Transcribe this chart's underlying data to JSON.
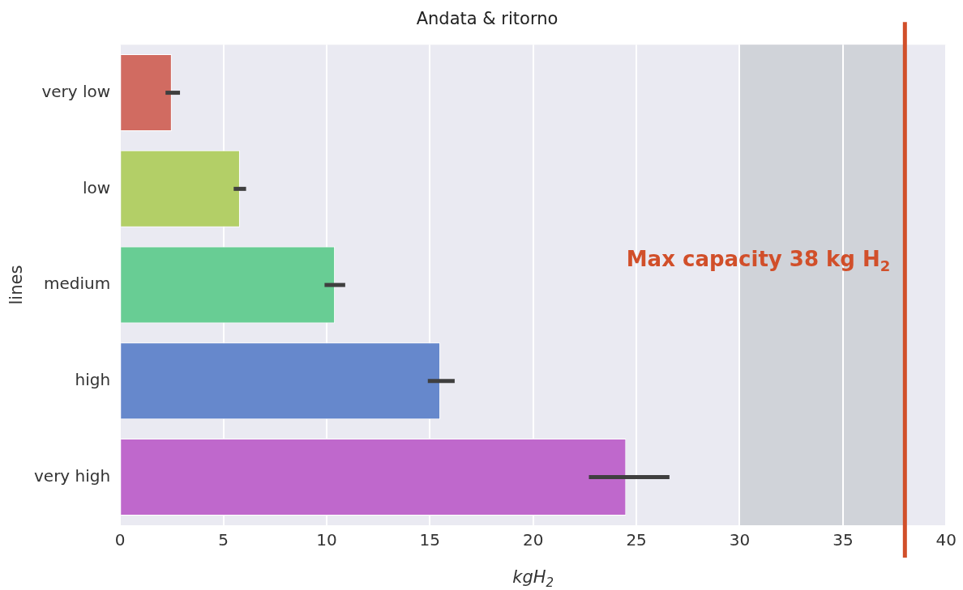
{
  "chart_data": {
    "type": "bar",
    "orientation": "horizontal",
    "title": "Andata & ritorno",
    "xlabel": "kgH$_{2}$",
    "ylabel": "lines",
    "categories": [
      "very low",
      "low",
      "medium",
      "high",
      "very high"
    ],
    "values": [
      2.5,
      5.8,
      10.4,
      15.5,
      24.5
    ],
    "colors": [
      "#d16b61",
      "#b3cf67",
      "#68cd94",
      "#6688cc",
      "#bf68cc"
    ],
    "errors": [
      [
        2.2,
        2.9
      ],
      [
        5.5,
        6.1
      ],
      [
        9.9,
        10.9
      ],
      [
        14.9,
        16.2
      ],
      [
        22.7,
        26.6
      ]
    ],
    "xlim": [
      0,
      40
    ],
    "xticks": [
      0,
      5,
      10,
      15,
      20,
      25,
      30,
      35,
      40
    ],
    "grid": "x",
    "ref_lines": [
      {
        "axis": "x",
        "value": 38,
        "label": "Max capacity 38 kg H$_{2}$",
        "color": "#d14f2a"
      }
    ],
    "bands": [
      {
        "axis": "x",
        "from": 30,
        "to": 38,
        "color": "#d0d3d9"
      }
    ]
  }
}
